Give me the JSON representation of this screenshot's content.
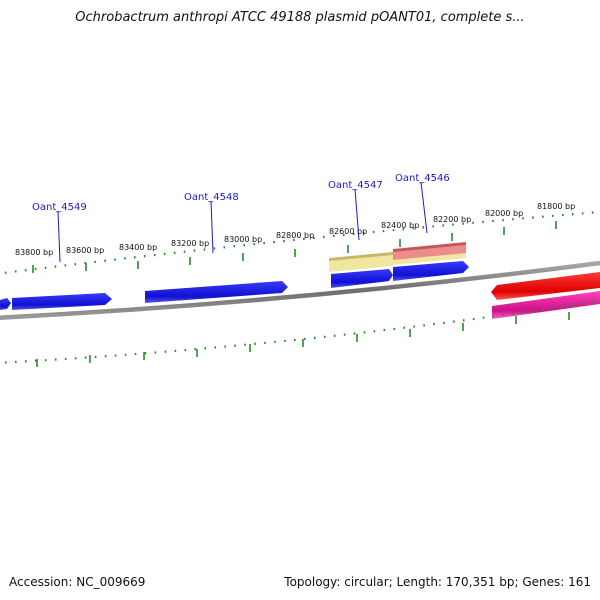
{
  "title": "Ochrobactrum anthropi ATCC 49188 plasmid pOANT01, complete s...",
  "footer": {
    "accession": "Accession: NC_009669",
    "summary": "Topology: circular; Length: 170,351 bp; Genes: 161"
  },
  "gene_labels": [
    "Oant_4549",
    "Oant_4548",
    "Oant_4547",
    "Oant_4546"
  ],
  "scale_labels": [
    "83800 bp",
    "83600 bp",
    "83400 bp",
    "83200 bp",
    "83000 bp",
    "82800 bp",
    "82600 bp",
    "82400 bp",
    "82200 bp",
    "82000 bp",
    "81800 bp"
  ],
  "colors": {
    "forward_cds": "#1515dd",
    "reverse_cds": "#ee1111",
    "reverse_rna": "#ee2299",
    "highlight_yellow": "#f1e6a0",
    "highlight_pink": "#ec8c8c",
    "backbone": "#808080",
    "ticks": "#2a8a2a",
    "label_line": "#1a1acc"
  }
}
